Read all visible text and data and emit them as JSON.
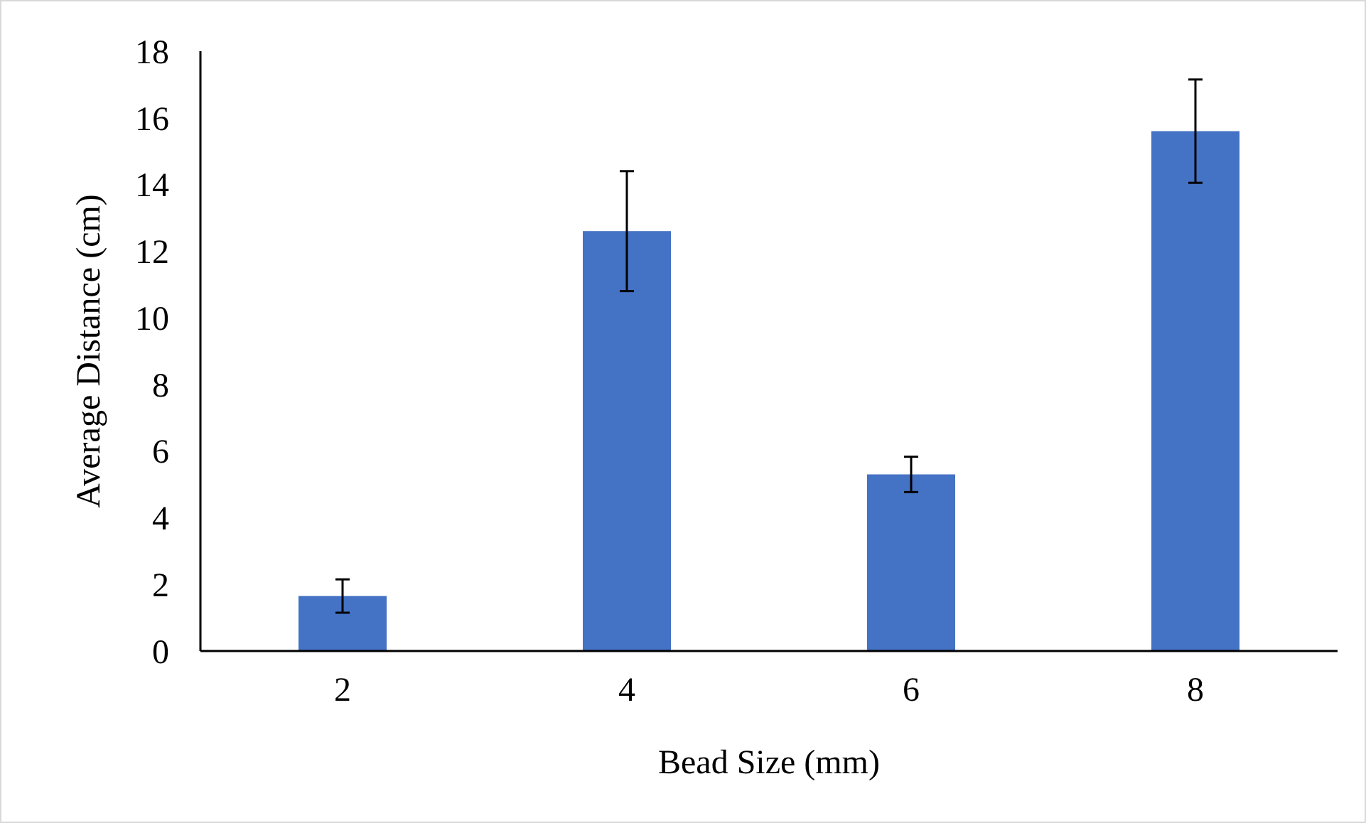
{
  "chart_data": {
    "type": "bar",
    "xlabel": "Bead Size (mm)",
    "ylabel": "Average Distance (cm)",
    "categories": [
      "2",
      "4",
      "6",
      "8"
    ],
    "values": [
      1.65,
      12.6,
      5.3,
      15.6
    ],
    "errors": [
      0.5,
      1.8,
      0.53,
      1.55
    ],
    "color": "#4472c4",
    "ylim": [
      0,
      18
    ],
    "yticks": [
      0,
      2,
      4,
      6,
      8,
      10,
      12,
      14,
      16,
      18
    ]
  }
}
